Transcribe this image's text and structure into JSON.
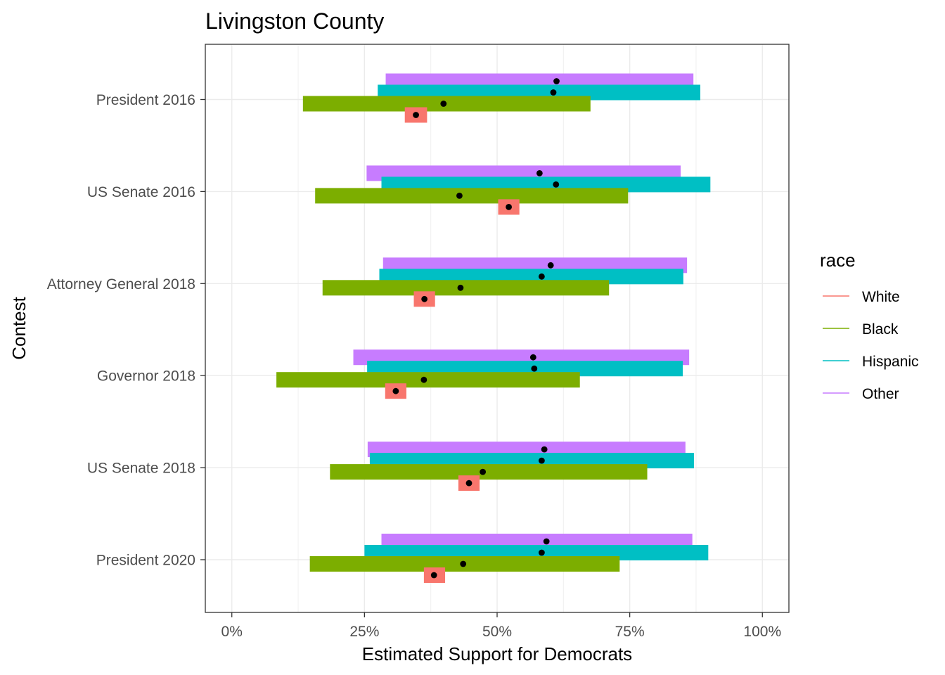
{
  "chart_data": {
    "type": "bar",
    "title": "Livingston County",
    "xlabel": "Estimated Support for Democrats",
    "ylabel": "Contest",
    "xlim": [
      -0.05,
      1.05
    ],
    "x_ticks": [
      {
        "value": 0,
        "label": "0%"
      },
      {
        "value": 0.25,
        "label": "25%"
      },
      {
        "value": 0.5,
        "label": "50%"
      },
      {
        "value": 0.75,
        "label": "75%"
      },
      {
        "value": 1.0,
        "label": "100%"
      }
    ],
    "grid": true,
    "legend": {
      "title": "race",
      "position": "right"
    },
    "categories": [
      "President 2016",
      "US Senate 2016",
      "Attorney General 2018",
      "Governor 2018",
      "US Senate 2018",
      "President 2020"
    ],
    "series": [
      {
        "name": "White",
        "color": "#F8766D",
        "ranges": [
          [
            0.326,
            0.368
          ],
          [
            0.502,
            0.542
          ],
          [
            0.343,
            0.383
          ],
          [
            0.289,
            0.329
          ],
          [
            0.427,
            0.467
          ],
          [
            0.362,
            0.402
          ]
        ],
        "points": [
          0.347,
          0.522,
          0.363,
          0.309,
          0.447,
          0.381
        ]
      },
      {
        "name": "Black",
        "color": "#7CAE00",
        "ranges": [
          [
            0.134,
            0.676
          ],
          [
            0.157,
            0.747
          ],
          [
            0.171,
            0.711
          ],
          [
            0.084,
            0.656
          ],
          [
            0.185,
            0.783
          ],
          [
            0.147,
            0.731
          ]
        ],
        "points": [
          0.399,
          0.429,
          0.431,
          0.362,
          0.473,
          0.436
        ]
      },
      {
        "name": "Hispanic",
        "color": "#00BFC4",
        "ranges": [
          [
            0.275,
            0.883
          ],
          [
            0.282,
            0.902
          ],
          [
            0.278,
            0.851
          ],
          [
            0.255,
            0.85
          ],
          [
            0.26,
            0.871
          ],
          [
            0.25,
            0.898
          ]
        ],
        "points": [
          0.606,
          0.611,
          0.584,
          0.57,
          0.584,
          0.584
        ]
      },
      {
        "name": "Other",
        "color": "#C77CFF",
        "ranges": [
          [
            0.29,
            0.87
          ],
          [
            0.254,
            0.846
          ],
          [
            0.285,
            0.858
          ],
          [
            0.229,
            0.862
          ],
          [
            0.256,
            0.855
          ],
          [
            0.282,
            0.868
          ]
        ],
        "points": [
          0.612,
          0.58,
          0.601,
          0.568,
          0.589,
          0.593
        ]
      }
    ]
  }
}
